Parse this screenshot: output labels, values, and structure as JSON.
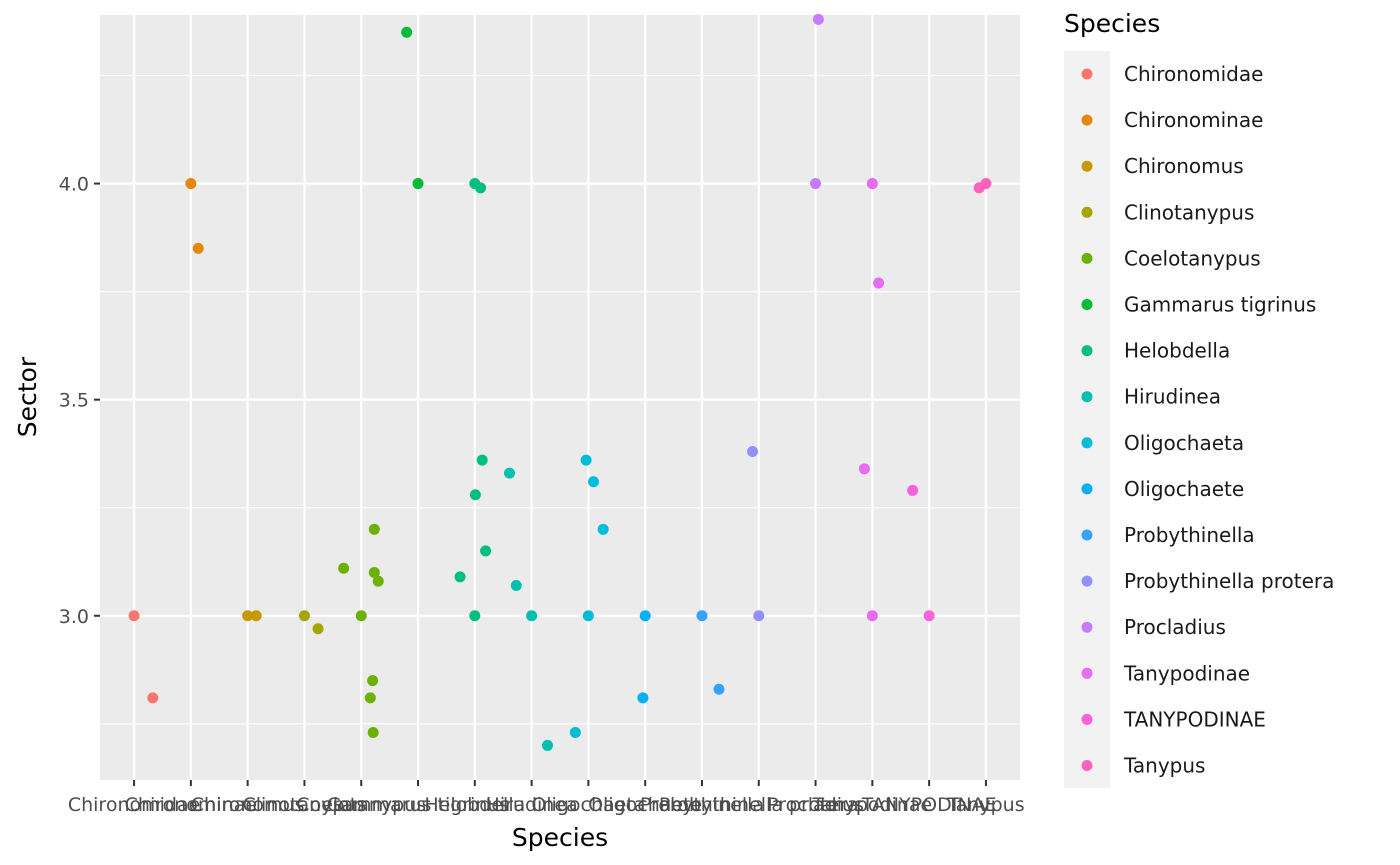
{
  "chart_data": {
    "type": "scatter",
    "xlabel": "Species",
    "ylabel": "Sector",
    "categories": [
      "Chironomidae",
      "Chironominae",
      "Chironomus",
      "Clinotanypus",
      "Coelotanypus",
      "Gammarus tigrinus",
      "Helobdella",
      "Hirudinea",
      "Oligochaeta",
      "Oligochaete",
      "Probythinella",
      "Probythinella protera",
      "Procladius",
      "Tanypodinae",
      "TANYPODINAE",
      "Tanypus"
    ],
    "ylim": [
      2.62,
      4.39
    ],
    "y_ticks": [
      "3.0",
      "3.5",
      "4.0"
    ],
    "grid": true,
    "legend": {
      "title": "Species",
      "position": "right"
    },
    "series": [
      {
        "name": "Chironomidae",
        "color": "#F8766D",
        "points": [
          [
            0.0,
            3.0
          ],
          [
            0.33,
            2.81
          ]
        ]
      },
      {
        "name": "Chironominae",
        "color": "#E58700",
        "points": [
          [
            1.0,
            4.0
          ],
          [
            1.13,
            3.85
          ]
        ]
      },
      {
        "name": "Chironomus",
        "color": "#C99800",
        "points": [
          [
            2.0,
            3.0
          ],
          [
            2.15,
            3.0
          ]
        ]
      },
      {
        "name": "Clinotanypus",
        "color": "#A3A500",
        "points": [
          [
            3.0,
            3.0
          ],
          [
            3.24,
            2.97
          ]
        ]
      },
      {
        "name": "Coelotanypus",
        "color": "#6BB100",
        "points": [
          [
            3.69,
            3.11
          ],
          [
            4.0,
            3.0
          ],
          [
            4.2,
            2.85
          ],
          [
            4.16,
            2.81
          ],
          [
            4.21,
            2.73
          ],
          [
            4.23,
            3.1
          ],
          [
            4.23,
            3.2
          ],
          [
            4.3,
            3.08
          ]
        ]
      },
      {
        "name": "Gammarus tigrinus",
        "color": "#00BA38",
        "points": [
          [
            4.8,
            4.35
          ],
          [
            5.0,
            4.0
          ]
        ]
      },
      {
        "name": "Helobdella",
        "color": "#00BF7D",
        "points": [
          [
            6.0,
            4.0
          ],
          [
            6.1,
            3.99
          ],
          [
            6.01,
            3.28
          ],
          [
            6.13,
            3.36
          ],
          [
            6.19,
            3.15
          ],
          [
            5.74,
            3.09
          ],
          [
            6.0,
            3.0
          ]
        ]
      },
      {
        "name": "Hirudinea",
        "color": "#00C0AF",
        "points": [
          [
            6.61,
            3.33
          ],
          [
            6.73,
            3.07
          ],
          [
            7.0,
            3.0
          ],
          [
            7.28,
            2.7
          ]
        ]
      },
      {
        "name": "Oligochaeta",
        "color": "#00BCD8",
        "points": [
          [
            7.96,
            3.36
          ],
          [
            8.09,
            3.31
          ],
          [
            8.26,
            3.2
          ],
          [
            8.0,
            3.0
          ],
          [
            7.77,
            2.73
          ]
        ]
      },
      {
        "name": "Oligochaete",
        "color": "#00B0F6",
        "points": [
          [
            9.0,
            3.0
          ],
          [
            8.96,
            2.81
          ]
        ]
      },
      {
        "name": "Probythinella",
        "color": "#35A2FF",
        "points": [
          [
            10.0,
            3.0
          ],
          [
            10.3,
            2.83
          ]
        ]
      },
      {
        "name": "Probythinella protera",
        "color": "#9590FF",
        "points": [
          [
            10.89,
            3.38
          ],
          [
            11.0,
            3.0
          ]
        ]
      },
      {
        "name": "Procladius",
        "color": "#C77CFF",
        "points": [
          [
            12.05,
            4.38
          ],
          [
            12.0,
            4.0
          ]
        ]
      },
      {
        "name": "Tanypodinae",
        "color": "#E76BF3",
        "points": [
          [
            13.0,
            4.0
          ],
          [
            13.11,
            3.77
          ],
          [
            12.86,
            3.34
          ],
          [
            13.0,
            3.0
          ]
        ]
      },
      {
        "name": "TANYPODINAE",
        "color": "#FA62DB",
        "points": [
          [
            13.71,
            3.29
          ],
          [
            14.0,
            3.0
          ]
        ]
      },
      {
        "name": "Tanypus",
        "color": "#FF62BC",
        "points": [
          [
            14.88,
            3.99
          ],
          [
            15.0,
            4.0
          ]
        ]
      }
    ]
  }
}
